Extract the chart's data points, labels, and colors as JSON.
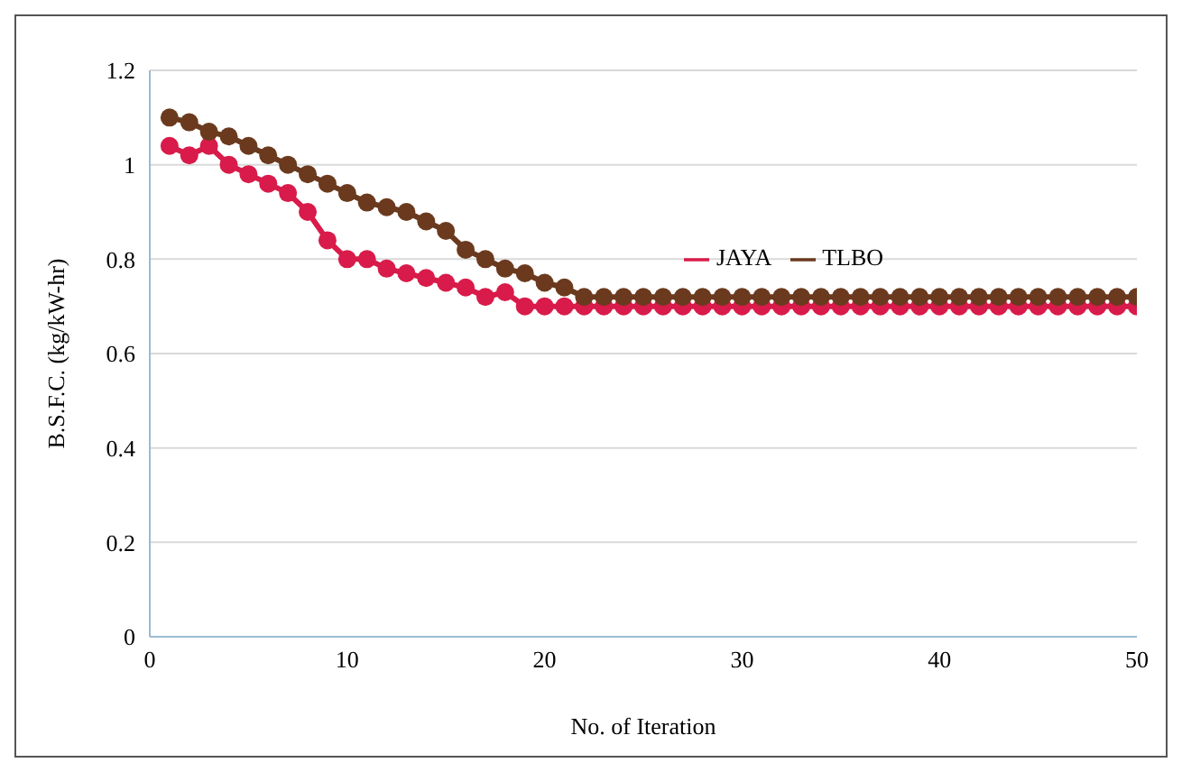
{
  "chart_data": {
    "type": "line",
    "xlabel": "No. of Iteration",
    "ylabel": "B.S.F.C. (kg/kW-hr)",
    "x": [
      1,
      2,
      3,
      4,
      5,
      6,
      7,
      8,
      9,
      10,
      11,
      12,
      13,
      14,
      15,
      16,
      17,
      18,
      19,
      20,
      21,
      22,
      23,
      24,
      25,
      26,
      27,
      28,
      29,
      30,
      31,
      32,
      33,
      34,
      35,
      36,
      37,
      38,
      39,
      40,
      41,
      42,
      43,
      44,
      45,
      46,
      47,
      48,
      49,
      50
    ],
    "series": [
      {
        "name": "JAYA",
        "color": "#d81b4a",
        "values": [
          1.04,
          1.02,
          1.04,
          1.0,
          0.98,
          0.96,
          0.94,
          0.9,
          0.84,
          0.8,
          0.8,
          0.78,
          0.77,
          0.76,
          0.75,
          0.74,
          0.72,
          0.73,
          0.7,
          0.7,
          0.7,
          0.7,
          0.7,
          0.7,
          0.7,
          0.7,
          0.7,
          0.7,
          0.7,
          0.7,
          0.7,
          0.7,
          0.7,
          0.7,
          0.7,
          0.7,
          0.7,
          0.7,
          0.7,
          0.7,
          0.7,
          0.7,
          0.7,
          0.7,
          0.7,
          0.7,
          0.7,
          0.7,
          0.7,
          0.7
        ]
      },
      {
        "name": "TLBO",
        "color": "#6b3a1e",
        "values": [
          1.1,
          1.09,
          1.07,
          1.06,
          1.04,
          1.02,
          1.0,
          0.98,
          0.96,
          0.94,
          0.92,
          0.91,
          0.9,
          0.88,
          0.86,
          0.82,
          0.8,
          0.78,
          0.77,
          0.75,
          0.74,
          0.72,
          0.72,
          0.72,
          0.72,
          0.72,
          0.72,
          0.72,
          0.72,
          0.72,
          0.72,
          0.72,
          0.72,
          0.72,
          0.72,
          0.72,
          0.72,
          0.72,
          0.72,
          0.72,
          0.72,
          0.72,
          0.72,
          0.72,
          0.72,
          0.72,
          0.72,
          0.72,
          0.72,
          0.72
        ]
      }
    ],
    "xlim": [
      0,
      50
    ],
    "xticks": [
      0,
      10,
      20,
      30,
      40,
      50
    ],
    "ylim": [
      0,
      1.2
    ],
    "yticks": [
      0,
      0.2,
      0.4,
      0.6,
      0.8,
      1,
      1.2
    ],
    "grid": "y",
    "legend": "right",
    "marker": "circle",
    "line_style": "solid"
  }
}
